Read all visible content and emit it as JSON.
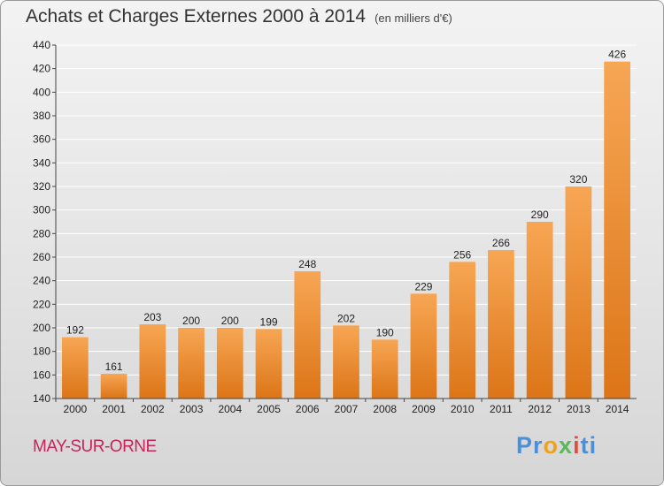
{
  "title": "Achats et Charges Externes 2000 à 2014",
  "unit_label": "(en milliers d'€)",
  "city": "MAY-SUR-ORNE",
  "logo": {
    "parts": [
      {
        "text": "Pr",
        "color": "#4a8fd8"
      },
      {
        "text": "o",
        "color": "#f2a21a"
      },
      {
        "text": "x",
        "color": "#5cb85c"
      },
      {
        "text": "i",
        "color": "#e64b3c"
      },
      {
        "text": "ti",
        "color": "#4a8fd8"
      }
    ]
  },
  "colors": {
    "bar_top": "#f7a654",
    "bar_bottom": "#dc7517",
    "grid": "#ffffff",
    "axis": "#444444"
  },
  "chart_data": {
    "type": "bar",
    "categories": [
      "2000",
      "2001",
      "2002",
      "2003",
      "2004",
      "2005",
      "2006",
      "2007",
      "2008",
      "2009",
      "2010",
      "2011",
      "2012",
      "2013",
      "2014"
    ],
    "values": [
      192,
      161,
      203,
      200,
      200,
      199,
      248,
      202,
      190,
      229,
      256,
      266,
      290,
      320,
      426
    ],
    "ylim": [
      140,
      440
    ],
    "yticks": [
      140,
      160,
      180,
      200,
      220,
      240,
      260,
      280,
      300,
      320,
      340,
      360,
      380,
      400,
      420,
      440
    ],
    "grid": true
  }
}
